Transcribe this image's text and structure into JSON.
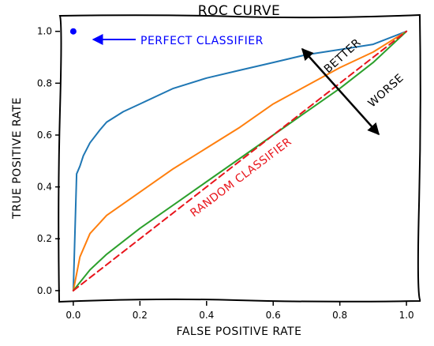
{
  "chart_data": {
    "type": "line",
    "title": "ROC CURVE",
    "xlabel": "FALSE POSITIVE RATE",
    "ylabel": "TRUE POSITIVE RATE",
    "xlim": [
      -0.04,
      1.04
    ],
    "ylim": [
      -0.04,
      1.06
    ],
    "xticks": [
      "0.0",
      "0.2",
      "0.4",
      "0.6",
      "0.8",
      "1.0"
    ],
    "yticks": [
      "0.0",
      "0.2",
      "0.4",
      "0.6",
      "0.8",
      "1.0"
    ],
    "grid": false,
    "series": [
      {
        "color": "#1f77b4",
        "style": "solid",
        "x": [
          0,
          0.01,
          0.02,
          0.03,
          0.05,
          0.08,
          0.1,
          0.15,
          0.2,
          0.3,
          0.4,
          0.5,
          0.6,
          0.7,
          0.8,
          0.9,
          1.0
        ],
        "y": [
          0,
          0.45,
          0.48,
          0.52,
          0.57,
          0.62,
          0.65,
          0.69,
          0.72,
          0.78,
          0.82,
          0.85,
          0.88,
          0.91,
          0.93,
          0.95,
          1.0
        ]
      },
      {
        "color": "#ff7f0e",
        "style": "solid",
        "x": [
          0,
          0.02,
          0.05,
          0.1,
          0.2,
          0.3,
          0.4,
          0.5,
          0.6,
          0.7,
          0.8,
          0.9,
          1.0
        ],
        "y": [
          0,
          0.13,
          0.22,
          0.29,
          0.38,
          0.47,
          0.55,
          0.63,
          0.72,
          0.79,
          0.86,
          0.92,
          1.0
        ]
      },
      {
        "color": "#2ca02c",
        "style": "solid",
        "x": [
          0,
          0.05,
          0.1,
          0.2,
          0.3,
          0.4,
          0.5,
          0.6,
          0.7,
          0.8,
          0.9,
          1.0
        ],
        "y": [
          0,
          0.08,
          0.14,
          0.24,
          0.33,
          0.42,
          0.51,
          0.6,
          0.69,
          0.78,
          0.88,
          1.0
        ]
      },
      {
        "color": "#e8141b",
        "style": "dashed",
        "x": [
          0,
          1
        ],
        "y": [
          0,
          1
        ]
      }
    ],
    "points": [
      {
        "x": 0,
        "y": 1,
        "color": "#0000ff"
      }
    ],
    "annotations": [
      {
        "text": "PERFECT CLASSIFIER",
        "color": "#0000ff"
      },
      {
        "text": "RANDOM CLASSIFIER",
        "color": "#e8141b"
      },
      {
        "text": "BETTER",
        "color": "#000000"
      },
      {
        "text": "WORSE",
        "color": "#000000"
      }
    ]
  }
}
